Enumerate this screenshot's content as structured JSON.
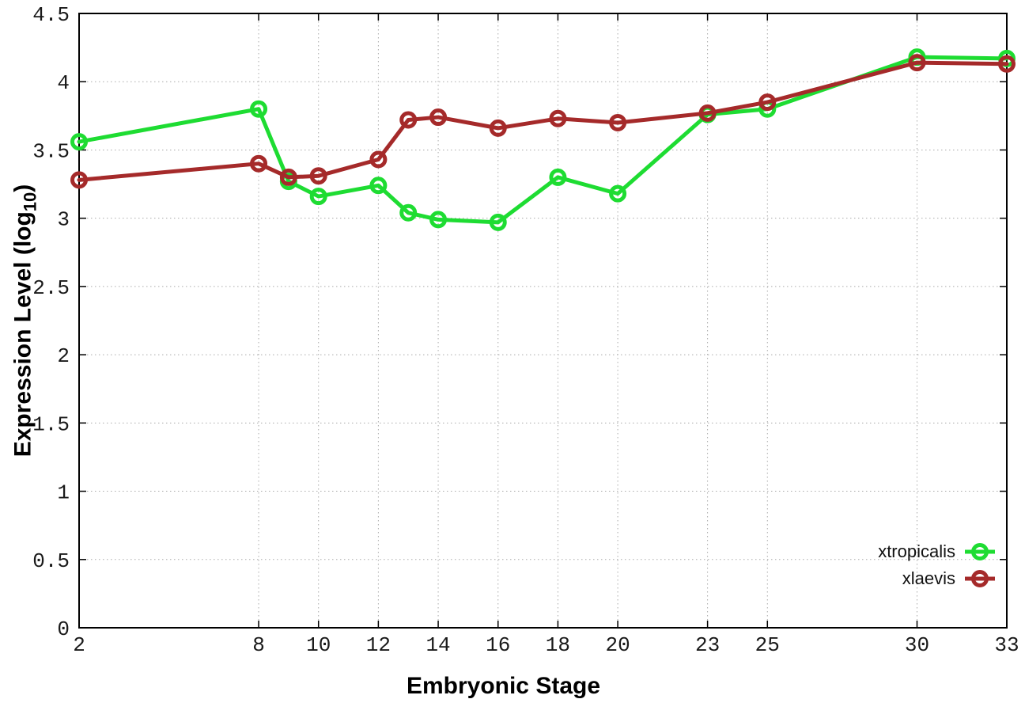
{
  "chart_data": {
    "type": "line",
    "title": "",
    "xlabel": "Embryonic Stage",
    "ylabel_prefix": "Expression Level (log",
    "ylabel_sub": "10",
    "ylabel_suffix": ")",
    "x": [
      2,
      8,
      9,
      10,
      12,
      13,
      14,
      16,
      18,
      20,
      23,
      25,
      30,
      33
    ],
    "series": [
      {
        "name": "xtropicalis",
        "color": "#1edc32",
        "values": [
          3.56,
          3.8,
          3.27,
          3.16,
          3.24,
          3.04,
          2.99,
          2.97,
          3.3,
          3.18,
          3.76,
          3.8,
          4.18,
          4.17
        ]
      },
      {
        "name": "xlaevis",
        "color": "#a52a2a",
        "values": [
          3.28,
          3.4,
          3.3,
          3.31,
          3.43,
          3.72,
          3.74,
          3.66,
          3.73,
          3.7,
          3.77,
          3.85,
          4.14,
          4.13
        ]
      }
    ],
    "xlim": [
      2,
      33
    ],
    "ylim": [
      0,
      4.5
    ],
    "xticks": [
      2,
      8,
      10,
      12,
      14,
      16,
      18,
      20,
      23,
      25,
      30,
      33
    ],
    "xtick_labels": [
      "2",
      "8",
      "10",
      "12",
      "14",
      "16",
      "18",
      "20",
      "23",
      "25",
      "30",
      "33"
    ],
    "yticks": [
      0,
      0.5,
      1,
      1.5,
      2,
      2.5,
      3,
      3.5,
      4,
      4.5
    ],
    "ytick_labels": [
      "0",
      "0.5",
      "1",
      "1.5",
      "2",
      "2.5",
      "3",
      "3.5",
      "4",
      "4.5"
    ],
    "grid": true,
    "legend_position": "bottom-right",
    "marker": "open-circle"
  },
  "colors": {
    "background": "#ffffff",
    "axis": "#000000",
    "grid": "#aaaaaa",
    "tick_label": "#1a1a1a",
    "xtropicalis": "#1edc32",
    "xlaevis": "#a52a2a"
  }
}
